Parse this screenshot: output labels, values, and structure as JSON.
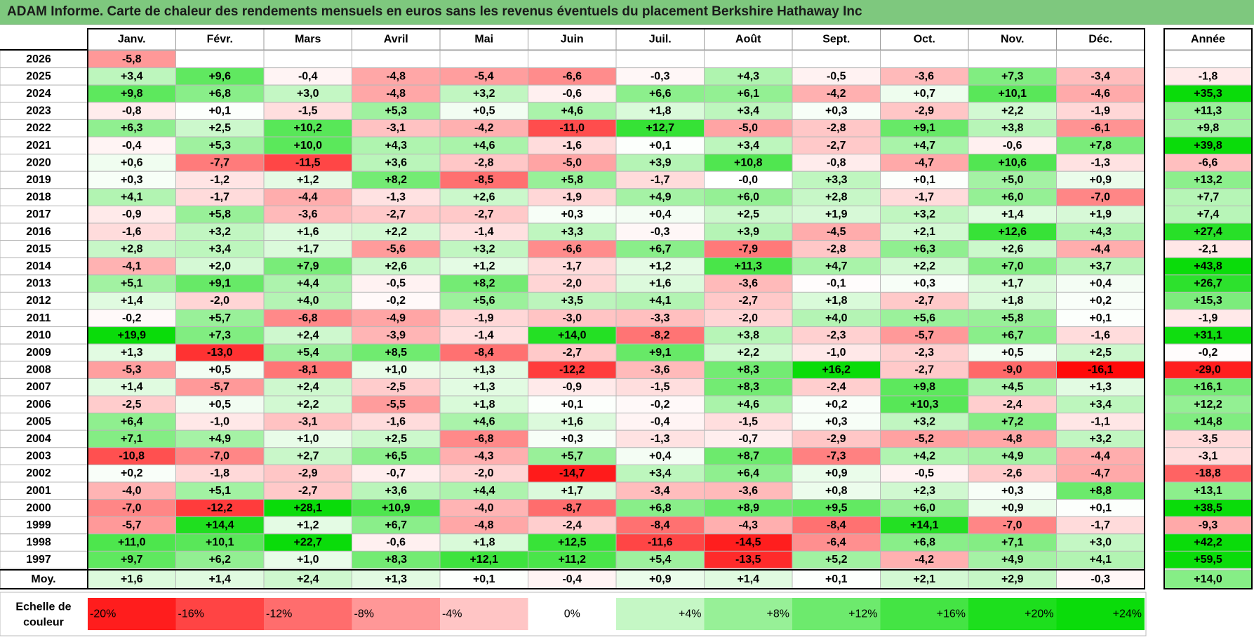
{
  "title": "ADAM Informe. Carte de chaleur des rendements mensuels en euros sans les revenus éventuels du placement Berkshire Hathaway Inc",
  "chart_data": {
    "type": "heatmap",
    "months": [
      "Janv.",
      "Févr.",
      "Mars",
      "Avril",
      "Mai",
      "Juin",
      "Juil.",
      "Août",
      "Sept.",
      "Oct.",
      "Nov.",
      "Déc."
    ],
    "year_header": "Année",
    "rows": [
      {
        "year": "2026",
        "months": [
          "-5,8",
          "",
          "",
          "",
          "",
          "",
          "",
          "",
          "",
          "",
          "",
          ""
        ],
        "annual": ""
      },
      {
        "year": "2025",
        "months": [
          "+3,4",
          "+9,6",
          "-0,4",
          "-4,8",
          "-5,4",
          "-6,6",
          "-0,3",
          "+4,3",
          "-0,5",
          "-3,6",
          "+7,3",
          "-3,4"
        ],
        "annual": "-1,8"
      },
      {
        "year": "2024",
        "months": [
          "+9,8",
          "+6,8",
          "+3,0",
          "-4,8",
          "+3,2",
          "-0,6",
          "+6,6",
          "+6,1",
          "-4,2",
          "+0,7",
          "+10,1",
          "-4,6"
        ],
        "annual": "+35,3"
      },
      {
        "year": "2023",
        "months": [
          "-0,8",
          "+0,1",
          "-1,5",
          "+5,3",
          "+0,5",
          "+4,6",
          "+1,8",
          "+3,4",
          "+0,3",
          "-2,9",
          "+2,2",
          "-1,9"
        ],
        "annual": "+11,3"
      },
      {
        "year": "2022",
        "months": [
          "+6,3",
          "+2,5",
          "+10,2",
          "-3,1",
          "-4,2",
          "-11,0",
          "+12,7",
          "-5,0",
          "-2,8",
          "+9,1",
          "+3,8",
          "-6,1"
        ],
        "annual": "+9,8"
      },
      {
        "year": "2021",
        "months": [
          "-0,4",
          "+5,3",
          "+10,0",
          "+4,3",
          "+4,6",
          "-1,6",
          "+0,1",
          "+3,4",
          "-2,7",
          "+4,7",
          "-0,6",
          "+7,8"
        ],
        "annual": "+39,8"
      },
      {
        "year": "2020",
        "months": [
          "+0,6",
          "-7,7",
          "-11,5",
          "+3,6",
          "-2,8",
          "-5,0",
          "+3,9",
          "+10,8",
          "-0,8",
          "-4,7",
          "+10,6",
          "-1,3"
        ],
        "annual": "-6,6"
      },
      {
        "year": "2019",
        "months": [
          "+0,3",
          "-1,2",
          "+1,2",
          "+8,2",
          "-8,5",
          "+5,8",
          "-1,7",
          "-0,0",
          "+3,3",
          "+0,1",
          "+5,0",
          "+0,9"
        ],
        "annual": "+13,2"
      },
      {
        "year": "2018",
        "months": [
          "+4,1",
          "-1,7",
          "-4,4",
          "-1,3",
          "+2,6",
          "-1,9",
          "+4,9",
          "+6,0",
          "+2,8",
          "-1,7",
          "+6,0",
          "-7,0"
        ],
        "annual": "+7,7"
      },
      {
        "year": "2017",
        "months": [
          "-0,9",
          "+5,8",
          "-3,6",
          "-2,7",
          "-2,7",
          "+0,3",
          "+0,4",
          "+2,5",
          "+1,9",
          "+3,2",
          "+1,4",
          "+1,9"
        ],
        "annual": "+7,4"
      },
      {
        "year": "2016",
        "months": [
          "-1,6",
          "+3,2",
          "+1,6",
          "+2,2",
          "-1,4",
          "+3,3",
          "-0,3",
          "+3,9",
          "-4,5",
          "+2,1",
          "+12,6",
          "+4,3"
        ],
        "annual": "+27,4"
      },
      {
        "year": "2015",
        "months": [
          "+2,8",
          "+3,4",
          "+1,7",
          "-5,6",
          "+3,2",
          "-6,6",
          "+6,7",
          "-7,9",
          "-2,8",
          "+6,3",
          "+2,6",
          "-4,4"
        ],
        "annual": "-2,1"
      },
      {
        "year": "2014",
        "months": [
          "-4,1",
          "+2,0",
          "+7,9",
          "+2,6",
          "+1,2",
          "-1,7",
          "+1,2",
          "+11,3",
          "+4,7",
          "+2,2",
          "+7,0",
          "+3,7"
        ],
        "annual": "+43,8"
      },
      {
        "year": "2013",
        "months": [
          "+5,1",
          "+9,1",
          "+4,4",
          "-0,5",
          "+8,2",
          "-2,0",
          "+1,6",
          "-3,6",
          "-0,1",
          "+0,3",
          "+1,7",
          "+0,4"
        ],
        "annual": "+26,7"
      },
      {
        "year": "2012",
        "months": [
          "+1,4",
          "-2,0",
          "+4,0",
          "-0,2",
          "+5,6",
          "+3,5",
          "+4,1",
          "-2,7",
          "+1,8",
          "-2,7",
          "+1,8",
          "+0,2"
        ],
        "annual": "+15,3"
      },
      {
        "year": "2011",
        "months": [
          "-0,2",
          "+5,7",
          "-6,8",
          "-4,9",
          "-1,9",
          "-3,0",
          "-3,3",
          "-2,0",
          "+4,0",
          "+5,6",
          "+5,8",
          "+0,1"
        ],
        "annual": "-1,9"
      },
      {
        "year": "2010",
        "months": [
          "+19,9",
          "+7,3",
          "+2,4",
          "-3,9",
          "-1,4",
          "+14,0",
          "-8,2",
          "+3,8",
          "-2,3",
          "-5,7",
          "+6,7",
          "-1,6"
        ],
        "annual": "+31,1"
      },
      {
        "year": "2009",
        "months": [
          "+1,3",
          "-13,0",
          "+5,4",
          "+8,5",
          "-8,4",
          "-2,7",
          "+9,1",
          "+2,2",
          "-1,0",
          "-2,3",
          "+0,5",
          "+2,5"
        ],
        "annual": "-0,2"
      },
      {
        "year": "2008",
        "months": [
          "-5,3",
          "+0,5",
          "-8,1",
          "+1,0",
          "+1,3",
          "-12,2",
          "-3,6",
          "+8,3",
          "+16,2",
          "-2,7",
          "-9,0",
          "-16,1"
        ],
        "annual": "-29,0"
      },
      {
        "year": "2007",
        "months": [
          "+1,4",
          "-5,7",
          "+2,4",
          "-2,5",
          "+1,3",
          "-0,9",
          "-1,5",
          "+8,3",
          "-2,4",
          "+9,8",
          "+4,5",
          "+1,3"
        ],
        "annual": "+16,1"
      },
      {
        "year": "2006",
        "months": [
          "-2,5",
          "+0,5",
          "+2,2",
          "-5,5",
          "+1,8",
          "+0,1",
          "-0,2",
          "+4,6",
          "+0,2",
          "+10,3",
          "-2,4",
          "+3,4"
        ],
        "annual": "+12,2"
      },
      {
        "year": "2005",
        "months": [
          "+6,4",
          "-1,0",
          "-3,1",
          "-1,6",
          "+4,6",
          "+1,6",
          "-0,4",
          "-1,5",
          "+0,3",
          "+3,2",
          "+7,2",
          "-1,1"
        ],
        "annual": "+14,8"
      },
      {
        "year": "2004",
        "months": [
          "+7,1",
          "+4,9",
          "+1,0",
          "+2,5",
          "-6,8",
          "+0,3",
          "-1,3",
          "-0,7",
          "-2,9",
          "-5,2",
          "-4,8",
          "+3,2"
        ],
        "annual": "-3,5"
      },
      {
        "year": "2003",
        "months": [
          "-10,8",
          "-7,0",
          "+2,7",
          "+6,5",
          "-4,3",
          "+5,7",
          "+0,4",
          "+8,7",
          "-7,3",
          "+4,2",
          "+4,9",
          "-4,4"
        ],
        "annual": "-3,1"
      },
      {
        "year": "2002",
        "months": [
          "+0,2",
          "-1,8",
          "-2,9",
          "-0,7",
          "-2,0",
          "-14,7",
          "+3,4",
          "+6,4",
          "+0,9",
          "-0,5",
          "-2,6",
          "-4,7"
        ],
        "annual": "-18,8"
      },
      {
        "year": "2001",
        "months": [
          "-4,0",
          "+5,1",
          "-2,7",
          "+3,6",
          "+4,4",
          "+1,7",
          "-3,4",
          "-3,6",
          "+0,8",
          "+2,3",
          "+0,3",
          "+8,8"
        ],
        "annual": "+13,1"
      },
      {
        "year": "2000",
        "months": [
          "-7,0",
          "-12,2",
          "+28,1",
          "+10,9",
          "-4,0",
          "-8,7",
          "+6,8",
          "+8,9",
          "+9,5",
          "+6,0",
          "+0,9",
          "+0,1"
        ],
        "annual": "+38,5"
      },
      {
        "year": "1999",
        "months": [
          "-5,7",
          "+14,4",
          "+1,2",
          "+6,7",
          "-4,8",
          "-2,4",
          "-8,4",
          "-4,3",
          "-8,4",
          "+14,1",
          "-7,0",
          "-1,7"
        ],
        "annual": "-9,3"
      },
      {
        "year": "1998",
        "months": [
          "+11,0",
          "+10,1",
          "+22,7",
          "-0,6",
          "+1,8",
          "+12,5",
          "-11,6",
          "-14,5",
          "-6,4",
          "+6,8",
          "+7,1",
          "+3,0"
        ],
        "annual": "+42,2"
      },
      {
        "year": "1997",
        "months": [
          "+9,7",
          "+6,2",
          "+1,0",
          "+8,3",
          "+12,1",
          "+11,2",
          "+5,4",
          "-13,5",
          "+5,2",
          "-4,2",
          "+4,9",
          "+4,1"
        ],
        "annual": "+59,5"
      }
    ],
    "average": {
      "label": "Moy.",
      "months": [
        "+1,6",
        "+1,4",
        "+2,4",
        "+1,3",
        "+0,1",
        "-0,4",
        "+0,9",
        "+1,4",
        "+0,1",
        "+2,1",
        "+2,9",
        "-0,3"
      ],
      "annual": "+14,0"
    },
    "scale": {
      "label_line1": "Echelle de",
      "label_line2": "couleur",
      "stops": [
        "-20%",
        "-16%",
        "-12%",
        "-8%",
        "-4%",
        "0%",
        "+4%",
        "+8%",
        "+12%",
        "+16%",
        "+20%",
        "+24%"
      ]
    },
    "colors": {
      "negative": "#ff0000",
      "positive": "#00dd00",
      "neutral": "#ffffff",
      "title_bg": "#7ec87e"
    }
  }
}
